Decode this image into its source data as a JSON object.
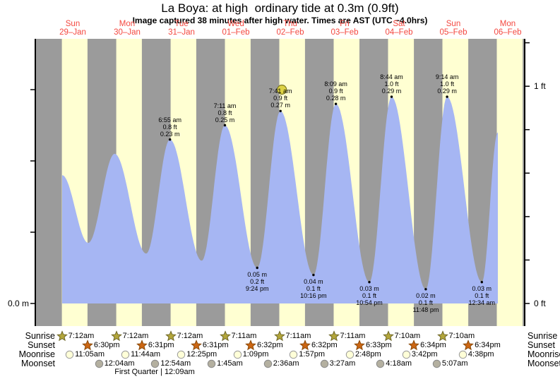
{
  "header": {
    "title": "La Boya: at high  ordinary tide at 0.3m (0.9ft)",
    "subtitle": "Image captured 38 minutes after high water. Times are AST (UTC −4.0hrs)"
  },
  "chart_data": {
    "type": "area",
    "title": "La Boya: at high  ordinary tide at 0.3m (0.9ft)",
    "x_days": [
      {
        "name": "Sun",
        "date": "29–Jan"
      },
      {
        "name": "Mon",
        "date": "30–Jan"
      },
      {
        "name": "Tue",
        "date": "31–Jan"
      },
      {
        "name": "Wed",
        "date": "01–Feb"
      },
      {
        "name": "Thu",
        "date": "02–Feb"
      },
      {
        "name": "Fri",
        "date": "03–Feb"
      },
      {
        "name": "Sat",
        "date": "04–Feb"
      },
      {
        "name": "Sun",
        "date": "05–Feb"
      },
      {
        "name": "Mon",
        "date": "06–Feb"
      }
    ],
    "y_axis": {
      "left_label": "0.0 m",
      "right_label_top": "1 ft",
      "right_label_bottom": "0 ft",
      "left_ticks_m": [
        0,
        0.1,
        0.2,
        0.3
      ],
      "right_ticks_ft": [
        0,
        0.2,
        0.4,
        0.6,
        0.8,
        1.0,
        1.2
      ]
    },
    "extremes": [
      {
        "day": 0,
        "time": "7:20 am",
        "height_m": 0.18,
        "point": "edge"
      },
      {
        "day": 0,
        "time": "6:50 pm",
        "height_m": 0.085,
        "point": "low"
      },
      {
        "day": 1,
        "time": "6:30 am",
        "height_m": 0.21,
        "point": "high"
      },
      {
        "day": 1,
        "time": "8:25 pm",
        "height_m": 0.07,
        "point": "low"
      },
      {
        "day": 2,
        "time": "6:55 am",
        "height_m": 0.23,
        "point": "high",
        "labeled": true,
        "label_lines": [
          "6:55 am",
          "0.8 ft",
          "0.23 m"
        ]
      },
      {
        "day": 2,
        "time": "8:55 pm",
        "height_m": 0.06,
        "point": "low"
      },
      {
        "day": 3,
        "time": "7:11 am",
        "height_m": 0.25,
        "point": "high",
        "labeled": true,
        "label_lines": [
          "7:11 am",
          "0.8 ft",
          "0.25 m"
        ]
      },
      {
        "day": 3,
        "time": "9:24 pm",
        "height_m": 0.05,
        "point": "low",
        "labeled": true,
        "label_lines": [
          "0.05 m",
          "0.2 ft",
          "9:24 pm"
        ]
      },
      {
        "day": 4,
        "time": "7:41 am",
        "height_m": 0.27,
        "point": "high",
        "labeled": true,
        "label_lines": [
          "7:41 am",
          "0.9 ft",
          "0.27 m"
        ]
      },
      {
        "day": 4,
        "time": "10:16 pm",
        "height_m": 0.04,
        "point": "low",
        "labeled": true,
        "label_lines": [
          "0.04 m",
          "0.1 ft",
          "10:16 pm"
        ]
      },
      {
        "day": 5,
        "time": "8:09 am",
        "height_m": 0.28,
        "point": "high",
        "labeled": true,
        "label_lines": [
          "8:09 am",
          "0.9 ft",
          "0.28 m"
        ]
      },
      {
        "day": 5,
        "time": "10:54 pm",
        "height_m": 0.03,
        "point": "low",
        "labeled": true,
        "label_lines": [
          "0.03 m",
          "0.1 ft",
          "10:54 pm"
        ]
      },
      {
        "day": 6,
        "time": "8:44 am",
        "height_m": 0.29,
        "point": "high",
        "labeled": true,
        "label_lines": [
          "8:44 am",
          "1.0 ft",
          "0.29 m"
        ]
      },
      {
        "day": 6,
        "time": "11:48 pm",
        "height_m": 0.02,
        "point": "low",
        "labeled": true,
        "label_lines": [
          "0.02 m",
          "0.1 ft",
          "11:48 pm"
        ]
      },
      {
        "day": 7,
        "time": "9:14 am",
        "height_m": 0.29,
        "point": "high",
        "labeled": true,
        "label_lines": [
          "9:14 am",
          "1.0 ft",
          "0.29 m"
        ]
      },
      {
        "day": 8,
        "time": "12:34 am",
        "height_m": 0.03,
        "point": "low",
        "labeled": true,
        "label_lines": [
          "0.03 m",
          "0.1 ft",
          "12:34 am"
        ]
      },
      {
        "day": 8,
        "time": "7:38 am",
        "height_m": 0.24,
        "point": "edge"
      }
    ],
    "now_marker": {
      "day": 4,
      "time": "8:19 am",
      "height_m": 0.3
    },
    "daylight_bands": [
      [
        "7:12am",
        "6:30pm"
      ],
      [
        "7:12am",
        "6:31pm"
      ],
      [
        "7:12am",
        "6:31pm"
      ],
      [
        "7:11am",
        "6:32pm"
      ],
      [
        "7:11am",
        "6:32pm"
      ],
      [
        "7:11am",
        "6:33pm"
      ],
      [
        "7:10am",
        "6:34pm"
      ],
      [
        "7:10am",
        "6:34pm"
      ],
      [
        "7:10am",
        "6:35pm"
      ]
    ]
  },
  "astro": {
    "row_labels_left": [
      "Sunrise",
      "Sunset",
      "Moonrise",
      "Moonset"
    ],
    "row_labels_right": [
      "Sunrise",
      "Sunset",
      "Moonrise",
      "Moonset"
    ],
    "sunrise": {
      "icon": "sunrise-star-icon",
      "entries": [
        {
          "day": 0,
          "time": "7:12am"
        },
        {
          "day": 1,
          "time": "7:12am"
        },
        {
          "day": 2,
          "time": "7:12am"
        },
        {
          "day": 3,
          "time": "7:11am"
        },
        {
          "day": 4,
          "time": "7:11am"
        },
        {
          "day": 5,
          "time": "7:11am"
        },
        {
          "day": 6,
          "time": "7:10am"
        },
        {
          "day": 7,
          "time": "7:10am"
        }
      ]
    },
    "sunset": {
      "icon": "sunset-star-icon",
      "entries": [
        {
          "day": 0,
          "time": "6:30pm"
        },
        {
          "day": 1,
          "time": "6:31pm"
        },
        {
          "day": 2,
          "time": "6:31pm"
        },
        {
          "day": 3,
          "time": "6:32pm"
        },
        {
          "day": 4,
          "time": "6:32pm"
        },
        {
          "day": 5,
          "time": "6:33pm"
        },
        {
          "day": 6,
          "time": "6:34pm"
        },
        {
          "day": 7,
          "time": "6:34pm"
        }
      ]
    },
    "moonrise": {
      "icon": "moonrise-circle-icon",
      "entries": [
        {
          "day": 0,
          "time": "11:05am"
        },
        {
          "day": 1,
          "time": "11:44am"
        },
        {
          "day": 2,
          "time": "12:25pm"
        },
        {
          "day": 3,
          "time": "1:09pm"
        },
        {
          "day": 4,
          "time": "1:57pm"
        },
        {
          "day": 5,
          "time": "2:48pm"
        },
        {
          "day": 6,
          "time": "3:42pm"
        },
        {
          "day": 7,
          "time": "4:38pm"
        }
      ]
    },
    "moonset": {
      "icon": "moonset-circle-icon",
      "entries": [
        {
          "day": 1,
          "time": "12:04am"
        },
        {
          "day": 2,
          "time": "12:54am"
        },
        {
          "day": 3,
          "time": "1:45am"
        },
        {
          "day": 4,
          "time": "2:36am"
        },
        {
          "day": 5,
          "time": "3:27am"
        },
        {
          "day": 6,
          "time": "4:18am"
        },
        {
          "day": 7,
          "time": "5:07am"
        }
      ]
    },
    "moon_phase": {
      "label": "First Quarter | 12:09am",
      "day": 2,
      "time": "12:09am"
    }
  },
  "colors": {
    "night_band": "#9b9b9b",
    "day_band": "#ffffd2",
    "tide_fill": "#a6b6f3",
    "date_label": "#f4473f",
    "axis": "#000000",
    "sunrise_star": "#b3a63a",
    "sunrise_star_edge": "#6f682a",
    "sunset_star": "#cc6612",
    "sunset_star_edge": "#8a4a0a",
    "moonrise_circle": "#ffffd8",
    "moonrise_circle_edge": "#999999",
    "moonset_circle": "#b4b0a0",
    "moonset_circle_edge": "#888888",
    "now_dot": "#ddd244",
    "now_dot_edge": "#7e7a22"
  }
}
